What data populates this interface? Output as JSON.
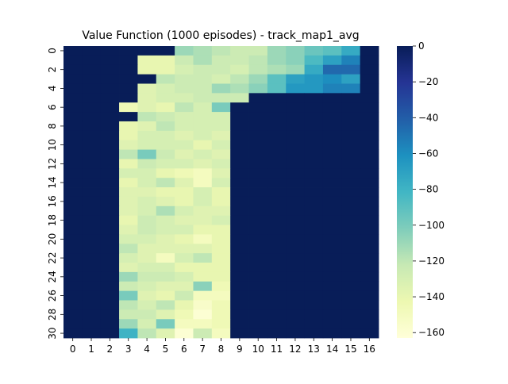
{
  "chart_data": {
    "type": "heatmap",
    "title": "Value Function (1000 episodes) - track_map1_avg",
    "xlabel": "",
    "ylabel": "",
    "x_ticks": [
      "0",
      "1",
      "2",
      "3",
      "4",
      "5",
      "6",
      "7",
      "8",
      "9",
      "10",
      "11",
      "12",
      "13",
      "14",
      "15",
      "16"
    ],
    "y_ticks": [
      "0",
      "2",
      "4",
      "6",
      "8",
      "10",
      "12",
      "14",
      "16",
      "18",
      "20",
      "22",
      "24",
      "26",
      "28",
      "30"
    ],
    "n_cols": 17,
    "n_rows": 31,
    "colorbar": {
      "min": -163,
      "max": 0,
      "ticks": [
        "0",
        "−20",
        "−40",
        "−60",
        "−80",
        "−100",
        "−120",
        "−140",
        "−160"
      ],
      "tick_values": [
        0,
        -20,
        -40,
        -60,
        -80,
        -100,
        -120,
        -140,
        -160
      ],
      "colormap": "YlGnBu",
      "colormap_stops": [
        "#ffffd9",
        "#edf8b1",
        "#c7e9b4",
        "#7fcdbb",
        "#41b6c4",
        "#1d91c0",
        "#225ea8",
        "#253494",
        "#081d58"
      ]
    },
    "values": [
      [
        0,
        0,
        0,
        0,
        0,
        0,
        -110,
        -115,
        -120,
        -125,
        -125,
        -110,
        -105,
        -95,
        -90,
        -75,
        0
      ],
      [
        0,
        0,
        0,
        0,
        -140,
        -140,
        -125,
        -115,
        -125,
        -125,
        -120,
        -110,
        -105,
        -85,
        -70,
        -55,
        0
      ],
      [
        0,
        0,
        0,
        0,
        -140,
        -140,
        -130,
        -125,
        -125,
        -130,
        -120,
        -115,
        -110,
        -75,
        -45,
        -45,
        0
      ],
      [
        0,
        0,
        0,
        0,
        0,
        -120,
        -125,
        -125,
        -130,
        -120,
        -110,
        -90,
        -70,
        -65,
        -60,
        -70,
        0
      ],
      [
        0,
        0,
        0,
        0,
        -135,
        -130,
        -125,
        -125,
        -110,
        -115,
        -105,
        -90,
        -65,
        -65,
        -55,
        -55,
        0
      ],
      [
        0,
        0,
        0,
        0,
        -135,
        -130,
        -130,
        -125,
        -125,
        -125,
        0,
        0,
        0,
        0,
        0,
        0,
        0
      ],
      [
        0,
        0,
        0,
        -145,
        -135,
        -140,
        -120,
        -130,
        -100,
        0,
        0,
        0,
        0,
        0,
        0,
        0,
        0
      ],
      [
        0,
        0,
        0,
        0,
        -120,
        -125,
        -130,
        -130,
        -130,
        0,
        0,
        0,
        0,
        0,
        0,
        0,
        0
      ],
      [
        0,
        0,
        0,
        -140,
        -135,
        -120,
        -130,
        -130,
        -130,
        0,
        0,
        0,
        0,
        0,
        0,
        0,
        0
      ],
      [
        0,
        0,
        0,
        -140,
        -130,
        -130,
        -135,
        -130,
        -135,
        0,
        0,
        0,
        0,
        0,
        0,
        0,
        0
      ],
      [
        0,
        0,
        0,
        -135,
        -130,
        -130,
        -130,
        -140,
        -130,
        0,
        0,
        0,
        0,
        0,
        0,
        0,
        0
      ],
      [
        0,
        0,
        0,
        -120,
        -100,
        -125,
        -135,
        -130,
        -135,
        0,
        0,
        0,
        0,
        0,
        0,
        0,
        0
      ],
      [
        0,
        0,
        0,
        -140,
        -125,
        -130,
        -130,
        -135,
        -130,
        0,
        0,
        0,
        0,
        0,
        0,
        0,
        0
      ],
      [
        0,
        0,
        0,
        -130,
        -130,
        -140,
        -145,
        -150,
        -135,
        0,
        0,
        0,
        0,
        0,
        0,
        0,
        0
      ],
      [
        0,
        0,
        0,
        -140,
        -130,
        -120,
        -135,
        -150,
        -130,
        0,
        0,
        0,
        0,
        0,
        0,
        0,
        0
      ],
      [
        0,
        0,
        0,
        -135,
        -135,
        -140,
        -140,
        -130,
        -140,
        0,
        0,
        0,
        0,
        0,
        0,
        0,
        0
      ],
      [
        0,
        0,
        0,
        -135,
        -130,
        -135,
        -140,
        -130,
        -140,
        0,
        0,
        0,
        0,
        0,
        0,
        0,
        0
      ],
      [
        0,
        0,
        0,
        -135,
        -130,
        -115,
        -130,
        -135,
        -135,
        0,
        0,
        0,
        0,
        0,
        0,
        0,
        0
      ],
      [
        0,
        0,
        0,
        -140,
        -125,
        -130,
        -135,
        -135,
        -130,
        0,
        0,
        0,
        0,
        0,
        0,
        0,
        0
      ],
      [
        0,
        0,
        0,
        -135,
        -125,
        -130,
        -130,
        -140,
        -140,
        0,
        0,
        0,
        0,
        0,
        0,
        0,
        0
      ],
      [
        0,
        0,
        0,
        -130,
        -130,
        -135,
        -140,
        -150,
        -140,
        0,
        0,
        0,
        0,
        0,
        0,
        0,
        0
      ],
      [
        0,
        0,
        0,
        -120,
        -135,
        -135,
        -135,
        -135,
        -140,
        0,
        0,
        0,
        0,
        0,
        0,
        0,
        0
      ],
      [
        0,
        0,
        0,
        -130,
        -135,
        -150,
        -130,
        -120,
        -140,
        0,
        0,
        0,
        0,
        0,
        0,
        0,
        0
      ],
      [
        0,
        0,
        0,
        -135,
        -130,
        -130,
        -140,
        -140,
        -140,
        0,
        0,
        0,
        0,
        0,
        0,
        0,
        0
      ],
      [
        0,
        0,
        0,
        -110,
        -125,
        -125,
        -130,
        -140,
        -140,
        0,
        0,
        0,
        0,
        0,
        0,
        0,
        0
      ],
      [
        0,
        0,
        0,
        -125,
        -130,
        -135,
        -135,
        -105,
        -145,
        0,
        0,
        0,
        0,
        0,
        0,
        0,
        0
      ],
      [
        0,
        0,
        0,
        -100,
        -135,
        -140,
        -125,
        -150,
        -150,
        0,
        0,
        0,
        0,
        0,
        0,
        0,
        0
      ],
      [
        0,
        0,
        0,
        -120,
        -130,
        -120,
        -140,
        -155,
        -145,
        0,
        0,
        0,
        0,
        0,
        0,
        0,
        0
      ],
      [
        0,
        0,
        0,
        -125,
        -125,
        -135,
        -145,
        -160,
        -145,
        0,
        0,
        0,
        0,
        0,
        0,
        0,
        0
      ],
      [
        0,
        0,
        0,
        -110,
        -130,
        -100,
        -150,
        -150,
        -145,
        0,
        0,
        0,
        0,
        0,
        0,
        0,
        0
      ],
      [
        0,
        0,
        0,
        -80,
        -120,
        -135,
        -160,
        -125,
        -150,
        0,
        0,
        0,
        0,
        0,
        0,
        0,
        0
      ]
    ]
  }
}
